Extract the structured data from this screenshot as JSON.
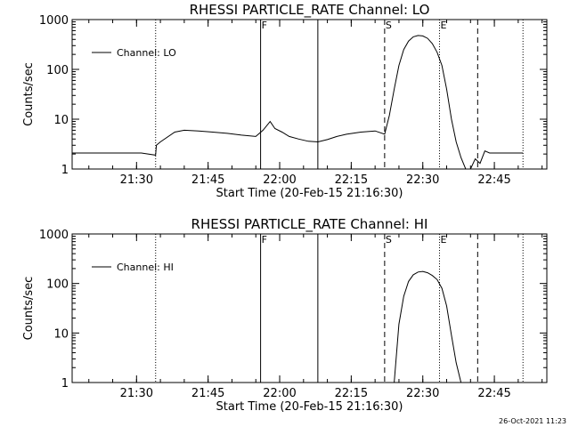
{
  "chart_data": [
    {
      "type": "line",
      "title": "RHESSI PARTICLE_RATE Channel: LO",
      "xlabel": "Start Time (20-Feb-15 21:16:30)",
      "ylabel": "Counts/sec",
      "yscale": "log",
      "ylim": [
        1,
        1000
      ],
      "xlim": [
        "21:16:30",
        "22:56:00"
      ],
      "x_ticks": [
        "21:30",
        "21:45",
        "22:00",
        "22:15",
        "22:30",
        "22:45"
      ],
      "y_ticks": [
        "1",
        "10",
        "100",
        "1000"
      ],
      "legend": {
        "label": "Channel: LO",
        "position": "top-left"
      },
      "markers": [
        {
          "label": "",
          "time": "21:34:00",
          "style": "dotted"
        },
        {
          "label": "F",
          "time": "21:56:00",
          "style": "solid"
        },
        {
          "label": "",
          "time": "22:08:00",
          "style": "solid"
        },
        {
          "label": "S",
          "time": "22:22:00",
          "style": "dashed"
        },
        {
          "label": "E",
          "time": "22:33:30",
          "style": "dotted"
        },
        {
          "label": "",
          "time": "22:41:30",
          "style": "dashed"
        },
        {
          "label": "",
          "time": "22:51:00",
          "style": "dotted"
        }
      ],
      "series": [
        {
          "name": "Channel: LO",
          "x": [
            "21:16:30",
            "21:19:00",
            "21:22:00",
            "21:25:00",
            "21:28:00",
            "21:31:00",
            "21:34:00",
            "21:34:10",
            "21:35:00",
            "21:38:00",
            "21:40:00",
            "21:43:00",
            "21:46:00",
            "21:49:00",
            "21:52:00",
            "21:55:00",
            "21:56:30",
            "21:58:00",
            "21:59:00",
            "22:00:30",
            "22:02:00",
            "22:04:00",
            "22:06:00",
            "22:08:00",
            "22:10:00",
            "22:12:00",
            "22:14:00",
            "22:17:00",
            "22:20:00",
            "22:22:00",
            "22:23:00",
            "22:24:00",
            "22:25:00",
            "22:26:00",
            "22:27:00",
            "22:28:00",
            "22:29:00",
            "22:30:00",
            "22:31:00",
            "22:32:00",
            "22:33:00",
            "22:34:00",
            "22:35:00",
            "22:36:00",
            "22:37:00",
            "22:38:00",
            "22:39:00",
            "22:40:00",
            "22:41:00",
            "22:42:00",
            "22:43:00",
            "22:44:00",
            "22:46:00",
            "22:49:00",
            "22:51:00"
          ],
          "y": [
            2.1,
            2.1,
            2.1,
            2.1,
            2.1,
            2.1,
            1.9,
            3.0,
            3.5,
            5.5,
            6.0,
            5.8,
            5.5,
            5.2,
            4.8,
            4.5,
            6.0,
            9.0,
            6.5,
            5.5,
            4.5,
            4.0,
            3.6,
            3.5,
            3.9,
            4.5,
            5.0,
            5.5,
            5.8,
            5.0,
            12,
            40,
            120,
            250,
            370,
            450,
            480,
            470,
            420,
            330,
            220,
            120,
            40,
            10,
            3.5,
            1.7,
            1.0,
            1.0,
            1.6,
            1.3,
            2.3,
            2.1,
            2.1,
            2.1,
            2.1
          ]
        }
      ]
    },
    {
      "type": "line",
      "title": "RHESSI PARTICLE_RATE Channel: HI",
      "xlabel": "Start Time (20-Feb-15 21:16:30)",
      "ylabel": "Counts/sec",
      "yscale": "log",
      "ylim": [
        1,
        1000
      ],
      "xlim": [
        "21:16:30",
        "22:56:00"
      ],
      "x_ticks": [
        "21:30",
        "21:45",
        "22:00",
        "22:15",
        "22:30",
        "22:45"
      ],
      "y_ticks": [
        "1",
        "10",
        "100",
        "1000"
      ],
      "legend": {
        "label": "Channel: HI",
        "position": "top-left"
      },
      "markers": [
        {
          "label": "",
          "time": "21:34:00",
          "style": "dotted"
        },
        {
          "label": "F",
          "time": "21:56:00",
          "style": "solid"
        },
        {
          "label": "",
          "time": "22:08:00",
          "style": "solid"
        },
        {
          "label": "S",
          "time": "22:22:00",
          "style": "dashed"
        },
        {
          "label": "E",
          "time": "22:33:30",
          "style": "dotted"
        },
        {
          "label": "",
          "time": "22:41:30",
          "style": "dashed"
        },
        {
          "label": "",
          "time": "22:51:00",
          "style": "dotted"
        }
      ],
      "series": [
        {
          "name": "Channel: HI",
          "x": [
            "22:24:00",
            "22:25:00",
            "22:26:00",
            "22:27:00",
            "22:28:00",
            "22:29:00",
            "22:30:00",
            "22:31:00",
            "22:32:00",
            "22:33:00",
            "22:34:00",
            "22:35:00",
            "22:36:00",
            "22:37:00",
            "22:38:00"
          ],
          "y": [
            1.0,
            15,
            55,
            110,
            150,
            170,
            175,
            165,
            145,
            120,
            80,
            35,
            9,
            2.5,
            1.0
          ]
        }
      ]
    }
  ],
  "footer": {
    "timestamp": "26-Oct-2021 11:23"
  }
}
